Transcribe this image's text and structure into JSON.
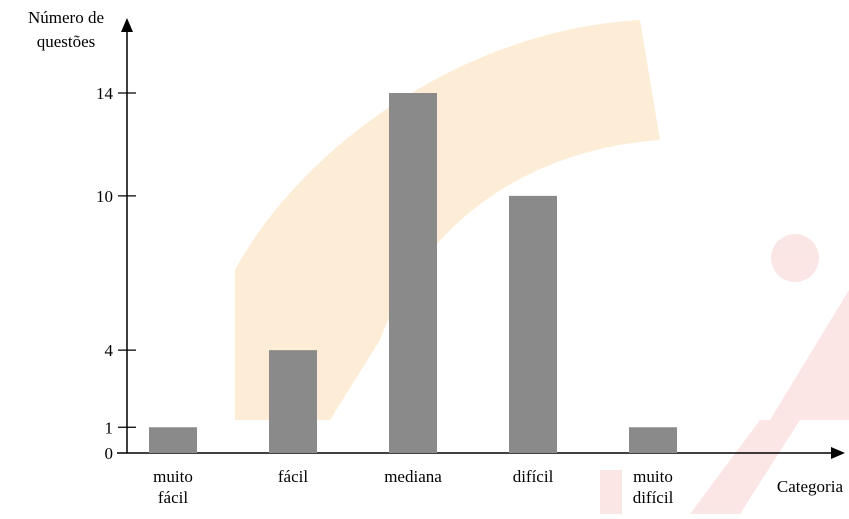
{
  "chart_data": {
    "type": "bar",
    "title": "",
    "ylabel_lines": [
      "Número de",
      "questões"
    ],
    "xlabel": "Categoria",
    "categories": [
      [
        "muito",
        "fácil"
      ],
      [
        "fácil"
      ],
      [
        "mediana"
      ],
      [
        "difícil"
      ],
      [
        "muito",
        "difícil"
      ]
    ],
    "values": [
      1,
      4,
      14,
      10,
      1
    ],
    "y_ticks": [
      0,
      1,
      4,
      10,
      14
    ],
    "ylim": [
      0,
      15.5
    ],
    "grid": false,
    "bar_color": "#8a8a8a",
    "axis_color": "#000000"
  }
}
